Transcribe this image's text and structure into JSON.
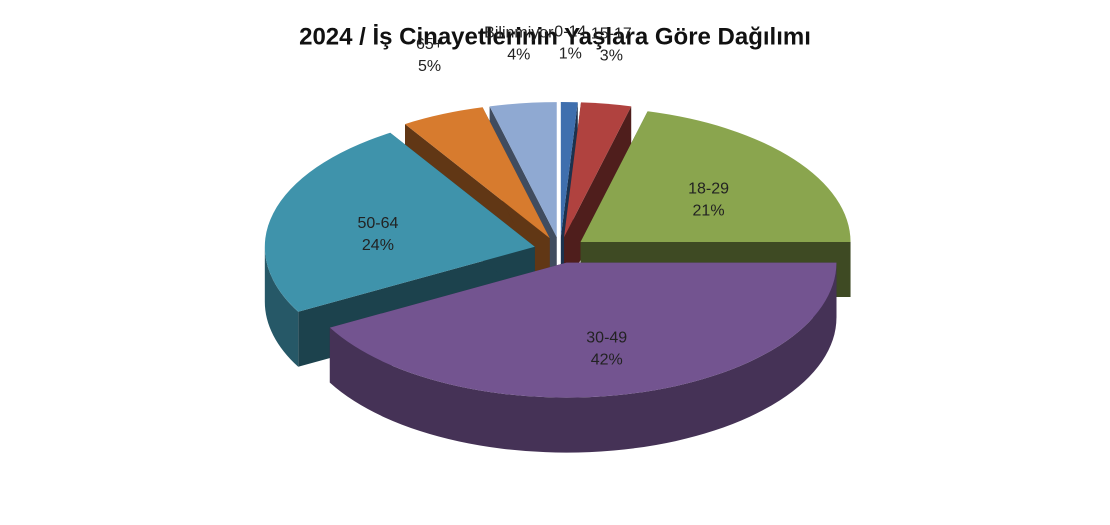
{
  "chart_data": {
    "type": "pie",
    "title": "2024 / İş Cinayetlerinin Yaşlara Göre Dağılımı",
    "categories": [
      "0-14",
      "15-17",
      "18-29",
      "30-49",
      "50-64",
      "65+",
      "Bilinmiyor"
    ],
    "values": [
      1,
      3,
      21,
      42,
      24,
      5,
      4
    ],
    "value_labels": [
      "1%",
      "3%",
      "21%",
      "42%",
      "24%",
      "5%",
      "4%"
    ],
    "colors": [
      "#3f6fae",
      "#b0423f",
      "#8aa54e",
      "#735490",
      "#3f93ab",
      "#d77b2e",
      "#8fa9d2"
    ]
  }
}
